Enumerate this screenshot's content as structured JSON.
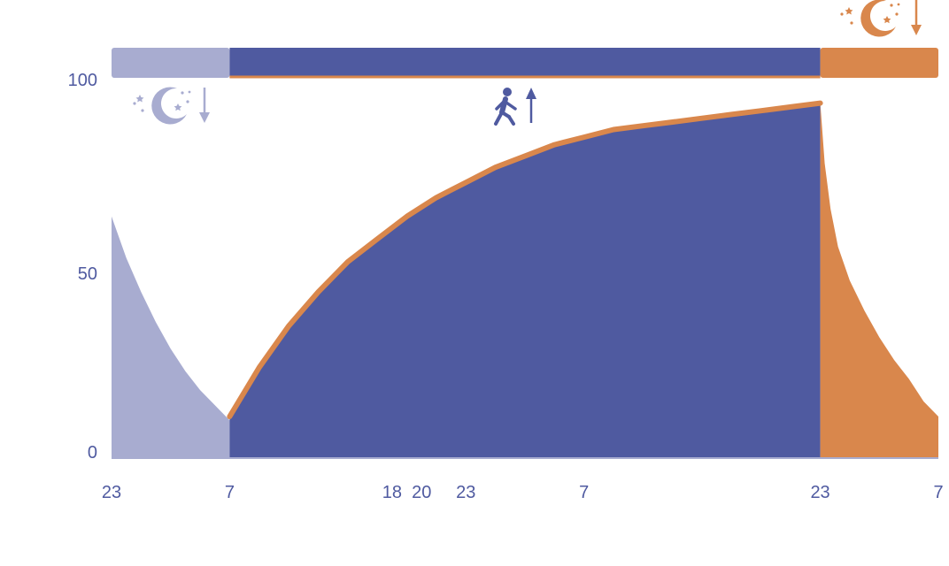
{
  "colors": {
    "sleep_light": "#a8acd0",
    "awake": "#4f5aa0",
    "sleep_orange": "#d9874c",
    "axis": "#4f5aa0"
  },
  "icons": [
    "moon-stars-icon",
    "arrow-down-icon",
    "walking-person-icon",
    "arrow-up-icon"
  ],
  "chart_data": {
    "type": "area",
    "title": "",
    "xlabel": "",
    "ylabel": "",
    "ylim": [
      0,
      100
    ],
    "y_ticks": [
      "0",
      "50",
      "100"
    ],
    "x_ticks": [
      {
        "label": "23",
        "hour": 0
      },
      {
        "label": "7",
        "hour": 8
      },
      {
        "label": "18",
        "hour": 19
      },
      {
        "label": "20",
        "hour": 21
      },
      {
        "label": "23",
        "hour": 24
      },
      {
        "label": "7",
        "hour": 32
      },
      {
        "label": "23",
        "hour": 48
      },
      {
        "label": "7",
        "hour": 56
      }
    ],
    "phases": [
      {
        "state": "sleep",
        "color": "sleep_light",
        "hour_start": 0,
        "hour_end": 8
      },
      {
        "state": "awake",
        "color": "awake",
        "hour_start": 8,
        "hour_end": 48
      },
      {
        "state": "sleep",
        "color": "sleep_orange",
        "hour_start": 48,
        "hour_end": 56
      }
    ],
    "series": [
      {
        "color": "sleep_light",
        "points": [
          [
            0,
            64
          ],
          [
            1,
            53
          ],
          [
            2,
            44
          ],
          [
            3,
            36
          ],
          [
            4,
            29
          ],
          [
            5,
            23
          ],
          [
            6,
            18
          ],
          [
            7,
            14
          ],
          [
            8,
            10
          ]
        ]
      },
      {
        "color": "awake",
        "outline": "sleep_orange",
        "points": [
          [
            8,
            11
          ],
          [
            10,
            24
          ],
          [
            12,
            35
          ],
          [
            14,
            44
          ],
          [
            16,
            52
          ],
          [
            18,
            58
          ],
          [
            20,
            64
          ],
          [
            22,
            69
          ],
          [
            24,
            73
          ],
          [
            26,
            77
          ],
          [
            28,
            80
          ],
          [
            30,
            83
          ],
          [
            32,
            85
          ],
          [
            34,
            87
          ],
          [
            36,
            88
          ],
          [
            38,
            89
          ],
          [
            40,
            90
          ],
          [
            42,
            91
          ],
          [
            44,
            92
          ],
          [
            46,
            93
          ],
          [
            48,
            94
          ]
        ]
      },
      {
        "color": "sleep_orange",
        "points": [
          [
            48,
            94
          ],
          [
            48.3,
            78
          ],
          [
            48.7,
            66
          ],
          [
            49.2,
            56
          ],
          [
            50,
            47
          ],
          [
            51,
            39
          ],
          [
            52,
            32
          ],
          [
            53,
            26
          ],
          [
            54,
            21
          ],
          [
            55,
            15
          ],
          [
            56,
            11
          ]
        ]
      }
    ]
  }
}
